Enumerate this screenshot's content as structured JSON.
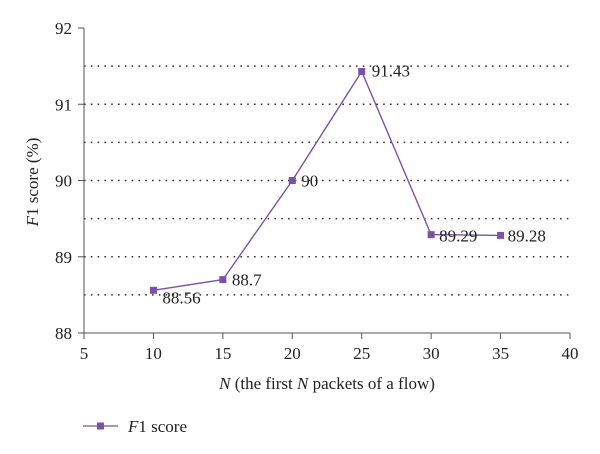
{
  "chart_data": {
    "type": "line",
    "x": [
      10,
      15,
      20,
      25,
      30,
      35
    ],
    "series": [
      {
        "name_italic": "F",
        "name_rest": "1 score",
        "values": [
          88.56,
          88.7,
          90,
          91.43,
          89.29,
          89.28
        ],
        "data_labels": [
          "88.56",
          "88.7",
          "90",
          "91.43",
          "89.29",
          "89.28"
        ],
        "color": "#7b52a6"
      }
    ],
    "xlim": [
      5,
      40
    ],
    "ylim": [
      88,
      92
    ],
    "x_ticks": [
      "5",
      "10",
      "15",
      "20",
      "25",
      "30",
      "35",
      "40"
    ],
    "y_ticks": [
      "88",
      "89",
      "90",
      "91",
      "92"
    ],
    "xlabel": {
      "part1": "N",
      "part2": " (the first ",
      "part3": "N",
      "part4": " packets of a flow)"
    },
    "ylabel": {
      "italic": "F",
      "rest": "1 score (%)"
    },
    "grid": "horizontal dotted",
    "legend": "bottom-left"
  }
}
